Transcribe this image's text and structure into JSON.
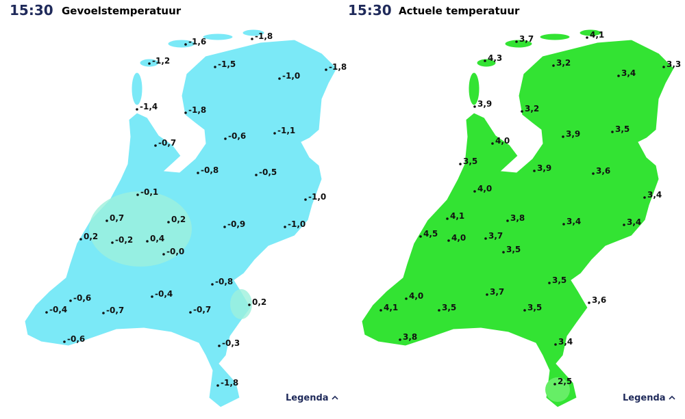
{
  "panels": [
    {
      "time": "15:30",
      "title": "Gevoelstemperatuur",
      "legend": "Legenda",
      "stations": [
        "-1,6",
        "-1,8",
        "-1,2",
        "-1,5",
        "-1,8",
        "-1,0",
        "-1,4",
        "-1,8",
        "-0,6",
        "-1,1",
        "-0,7",
        "-0,8",
        "-0,5",
        "-0,1",
        "-1,0",
        "0,7",
        "0,2",
        "-0,9",
        "-1,0",
        "0,2",
        "-0,2",
        "0,4",
        "-0,0",
        "-0,8",
        "-0,6",
        "-0,4",
        "0,2",
        "-0,4",
        "-0,7",
        "-0,7",
        "-0,6",
        "-0,3",
        "-1,8"
      ]
    },
    {
      "time": "15:30",
      "title": "Actuele temperatuur",
      "legend": "Legenda",
      "stations": [
        "3,7",
        "4,1",
        "4,3",
        "3,2",
        "3,3",
        "3,4",
        "3,9",
        "3,2",
        "3,9",
        "3,5",
        "4,0",
        "3,5",
        "3,9",
        "3,6",
        "4,0",
        "3,4",
        "4,1",
        "3,8",
        "3,4",
        "3,4",
        "4,5",
        "4,0",
        "3,7",
        "3,5",
        "3,5",
        "4,0",
        "3,7",
        "3,6",
        "4,1",
        "3,5",
        "3,5",
        "3,8",
        "3,4",
        "2,5"
      ]
    }
  ]
}
